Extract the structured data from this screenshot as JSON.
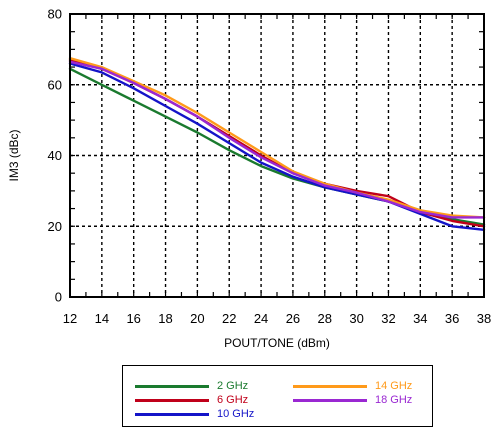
{
  "chart_data": {
    "type": "line",
    "title": "",
    "xlabel": "POUT/TONE (dBm)",
    "ylabel": "IM3 (dBc)",
    "xlim": [
      12,
      38
    ],
    "ylim": [
      0,
      80
    ],
    "x_ticks": [
      "12",
      "14",
      "16",
      "18",
      "20",
      "22",
      "24",
      "26",
      "28",
      "30",
      "32",
      "34",
      "36",
      "38"
    ],
    "y_ticks": [
      "0",
      "20",
      "40",
      "60",
      "80"
    ],
    "grid": true,
    "legend_position": "below",
    "x": [
      12,
      14,
      16,
      18,
      20,
      22,
      24,
      26,
      28,
      30,
      32,
      34,
      36,
      38
    ],
    "series": [
      {
        "name": "2 GHz",
        "color": "#1a7a2e",
        "values": [
          64.5,
          60,
          55.5,
          51,
          46.5,
          41.5,
          37,
          33.5,
          31,
          29,
          27,
          24.5,
          22,
          20.5
        ]
      },
      {
        "name": "6 GHz",
        "color": "#c0001a",
        "values": [
          67,
          64.5,
          60.5,
          56,
          51,
          45.5,
          40,
          35,
          32,
          30,
          28.5,
          24,
          21.5,
          20
        ]
      },
      {
        "name": "10 GHz",
        "color": "#1414c8",
        "values": [
          66,
          63.5,
          59,
          54,
          49,
          43.5,
          38,
          34,
          31,
          29,
          27,
          23.5,
          20,
          19
        ]
      },
      {
        "name": "14 GHz",
        "color": "#ff9a1a",
        "values": [
          67.5,
          65,
          61,
          57,
          52,
          46.5,
          41,
          35.5,
          32,
          29.5,
          27.5,
          24.5,
          23,
          22.5
        ]
      },
      {
        "name": "18 GHz",
        "color": "#9a28d2",
        "values": [
          66.5,
          64.5,
          60.5,
          56,
          51,
          45,
          39.5,
          35,
          31.5,
          29.5,
          27,
          24,
          22.5,
          22.5
        ]
      }
    ]
  }
}
